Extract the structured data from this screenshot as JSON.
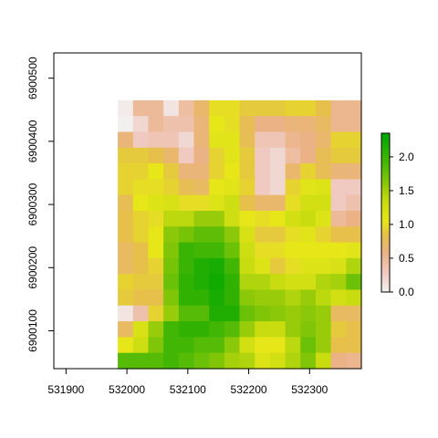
{
  "chart_data": {
    "type": "heatmap",
    "title": "",
    "xlabel": "",
    "ylabel": "",
    "xlim": [
      531880,
      532385
    ],
    "ylim": [
      6900040,
      6900540
    ],
    "cell_size": 25,
    "x_ticks": [
      531900,
      532000,
      532100,
      532200,
      532300
    ],
    "x_tick_labels": [
      "531900",
      "532000",
      "532100",
      "532200",
      "532300"
    ],
    "y_ticks": [
      6900100,
      6900200,
      6900300,
      6900400,
      6900500
    ],
    "y_tick_labels": [
      "6900100",
      "6900200",
      "6900300",
      "6900400",
      "6900500"
    ],
    "value_range": [
      0,
      2.35
    ],
    "colorbar_ticks": [
      0.0,
      0.5,
      1.0,
      1.5,
      2.0
    ],
    "colorbar_tick_labels": [
      "0.0",
      "0.5",
      "1.0",
      "1.5",
      "2.0"
    ],
    "legend_position": "right",
    "color_stops": [
      {
        "v": 0.0,
        "c": "#f2f2f2"
      },
      {
        "v": 0.3,
        "c": "#f0c9c0"
      },
      {
        "v": 0.6,
        "c": "#ebb285"
      },
      {
        "v": 0.85,
        "c": "#e6c04a"
      },
      {
        "v": 1.05,
        "c": "#e6e619"
      },
      {
        "v": 1.35,
        "c": "#c8dc10"
      },
      {
        "v": 1.6,
        "c": "#8cc80a"
      },
      {
        "v": 1.9,
        "c": "#4ab805"
      },
      {
        "v": 2.35,
        "c": "#00a600"
      }
    ],
    "rows_top_to_bottom": [
      [
        0.05,
        0.5,
        0.5,
        0.1,
        0.45,
        0.7,
        1.0,
        1.0,
        0.9,
        0.9,
        0.9,
        0.95,
        0.95,
        0.85,
        0.55,
        0.55
      ],
      [
        0.02,
        0.2,
        0.5,
        0.4,
        0.4,
        0.65,
        1.05,
        1.0,
        0.8,
        0.6,
        0.6,
        0.65,
        0.65,
        0.75,
        0.55,
        0.55
      ],
      [
        0.65,
        0.3,
        0.35,
        0.35,
        0.2,
        0.65,
        1.1,
        1.1,
        0.8,
        0.35,
        0.35,
        0.55,
        0.6,
        0.7,
        0.95,
        0.95
      ],
      [
        0.9,
        0.9,
        0.85,
        0.7,
        0.3,
        0.6,
        0.95,
        1.1,
        0.9,
        0.3,
        0.2,
        0.45,
        0.6,
        0.8,
        0.9,
        0.9
      ],
      [
        0.95,
        0.95,
        1.05,
        0.9,
        0.65,
        0.65,
        0.95,
        1.05,
        0.9,
        0.3,
        0.2,
        0.7,
        0.95,
        0.8,
        0.65,
        0.65
      ],
      [
        0.95,
        1.0,
        1.0,
        0.95,
        0.8,
        0.75,
        1.05,
        1.1,
        0.95,
        0.3,
        0.2,
        0.95,
        1.1,
        1.15,
        0.3,
        0.3
      ],
      [
        0.8,
        1.05,
        1.15,
        1.2,
        1.0,
        1.0,
        1.15,
        1.3,
        0.85,
        0.7,
        0.7,
        1.0,
        1.25,
        1.25,
        0.3,
        0.4
      ],
      [
        0.85,
        0.95,
        1.0,
        1.4,
        1.4,
        1.55,
        1.55,
        1.3,
        1.05,
        1.0,
        1.05,
        1.25,
        1.35,
        1.15,
        0.5,
        0.6
      ],
      [
        0.85,
        0.95,
        1.05,
        1.6,
        1.7,
        1.8,
        1.8,
        1.6,
        1.2,
        0.9,
        0.9,
        1.0,
        1.1,
        0.95,
        0.85,
        0.85
      ],
      [
        0.75,
        0.85,
        1.05,
        1.65,
        2.0,
        1.95,
        1.95,
        1.75,
        1.3,
        1.0,
        1.0,
        1.05,
        1.05,
        1.05,
        1.05,
        1.1
      ],
      [
        0.75,
        0.85,
        0.95,
        1.7,
        2.0,
        2.15,
        2.2,
        1.95,
        1.35,
        1.15,
        0.9,
        1.0,
        1.15,
        1.15,
        1.2,
        1.45
      ],
      [
        0.95,
        0.9,
        0.9,
        1.75,
        2.05,
        2.15,
        2.25,
        2.05,
        1.45,
        1.45,
        1.35,
        1.25,
        1.25,
        1.45,
        1.5,
        1.75
      ],
      [
        0.9,
        0.85,
        0.85,
        1.65,
        2.05,
        2.05,
        2.2,
        2.05,
        1.6,
        1.55,
        1.55,
        1.45,
        1.55,
        1.4,
        1.25,
        1.35
      ],
      [
        0.1,
        0.4,
        0.95,
        1.55,
        1.85,
        1.85,
        2.15,
        2.15,
        1.75,
        1.65,
        1.6,
        1.55,
        1.6,
        1.55,
        0.75,
        0.75
      ],
      [
        0.75,
        1.2,
        1.55,
        1.95,
        2.05,
        2.05,
        1.95,
        1.85,
        1.55,
        1.35,
        1.35,
        1.55,
        1.65,
        1.55,
        0.9,
        0.85
      ],
      [
        1.05,
        1.3,
        1.65,
        1.95,
        1.95,
        1.85,
        1.85,
        1.6,
        1.25,
        1.05,
        1.05,
        1.4,
        1.75,
        1.55,
        0.85,
        0.85
      ],
      [
        1.85,
        1.85,
        1.85,
        1.95,
        1.85,
        1.75,
        1.65,
        1.5,
        1.45,
        1.15,
        1.25,
        1.45,
        1.65,
        1.35,
        0.6,
        0.55
      ]
    ]
  }
}
